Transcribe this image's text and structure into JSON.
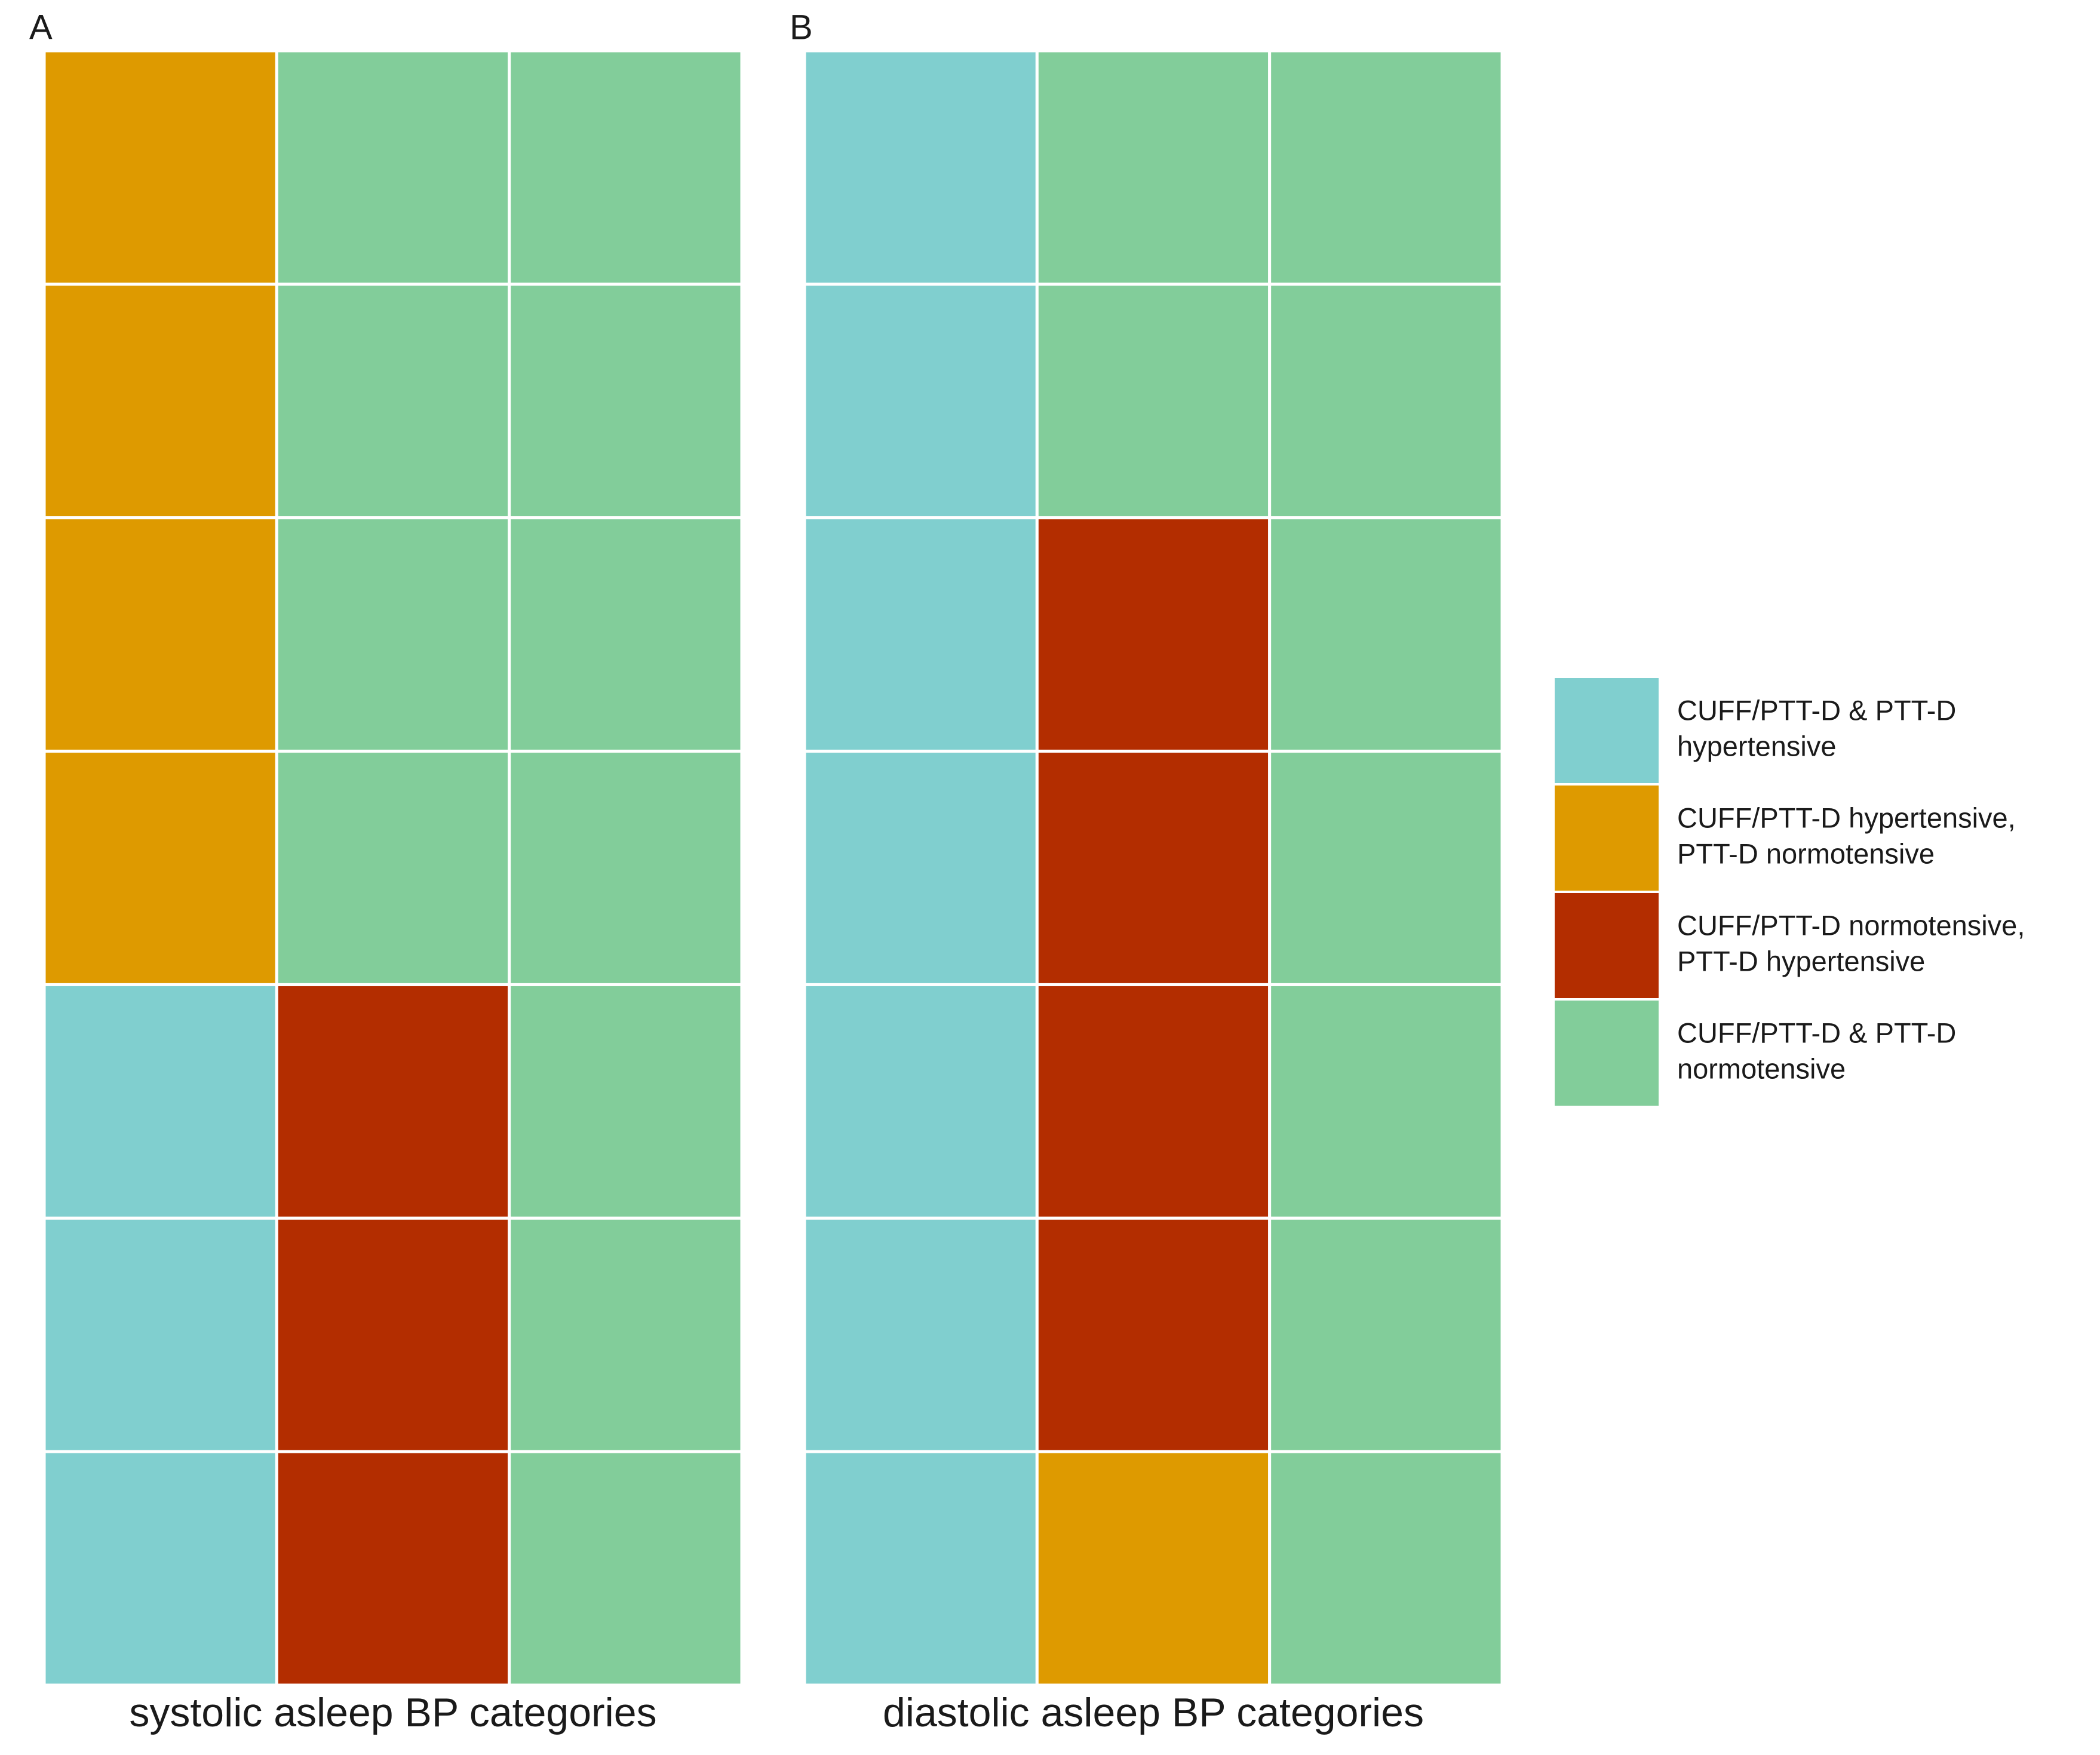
{
  "chart_data": {
    "type": "tile",
    "panels": [
      {
        "label": "A",
        "xlabel": "systolic asleep BP categories",
        "cells": [
          [
            1,
            3,
            3
          ],
          [
            1,
            3,
            3
          ],
          [
            1,
            3,
            3
          ],
          [
            1,
            3,
            3
          ],
          [
            0,
            2,
            3
          ],
          [
            0,
            2,
            3
          ],
          [
            0,
            2,
            3
          ]
        ]
      },
      {
        "label": "B",
        "xlabel": "diastolic asleep BP categories",
        "cells": [
          [
            0,
            3,
            3
          ],
          [
            0,
            3,
            3
          ],
          [
            0,
            2,
            3
          ],
          [
            0,
            2,
            3
          ],
          [
            0,
            2,
            3
          ],
          [
            0,
            2,
            3
          ],
          [
            0,
            1,
            3
          ]
        ]
      }
    ],
    "legend": [
      {
        "lines": [
          "CUFF/PTT-D & PTT-D",
          "hypertensive"
        ],
        "color": "#80cfcf"
      },
      {
        "lines": [
          "CUFF/PTT-D hypertensive,",
          "PTT-D normotensive"
        ],
        "color": "#de9a00"
      },
      {
        "lines": [
          "CUFF/PTT-D normotensive,",
          "PTT-D hypertensive"
        ],
        "color": "#b32d00"
      },
      {
        "lines": [
          "CUFF/PTT-D & PTT-D",
          "normotensive"
        ],
        "color": "#82cd9a"
      }
    ]
  }
}
